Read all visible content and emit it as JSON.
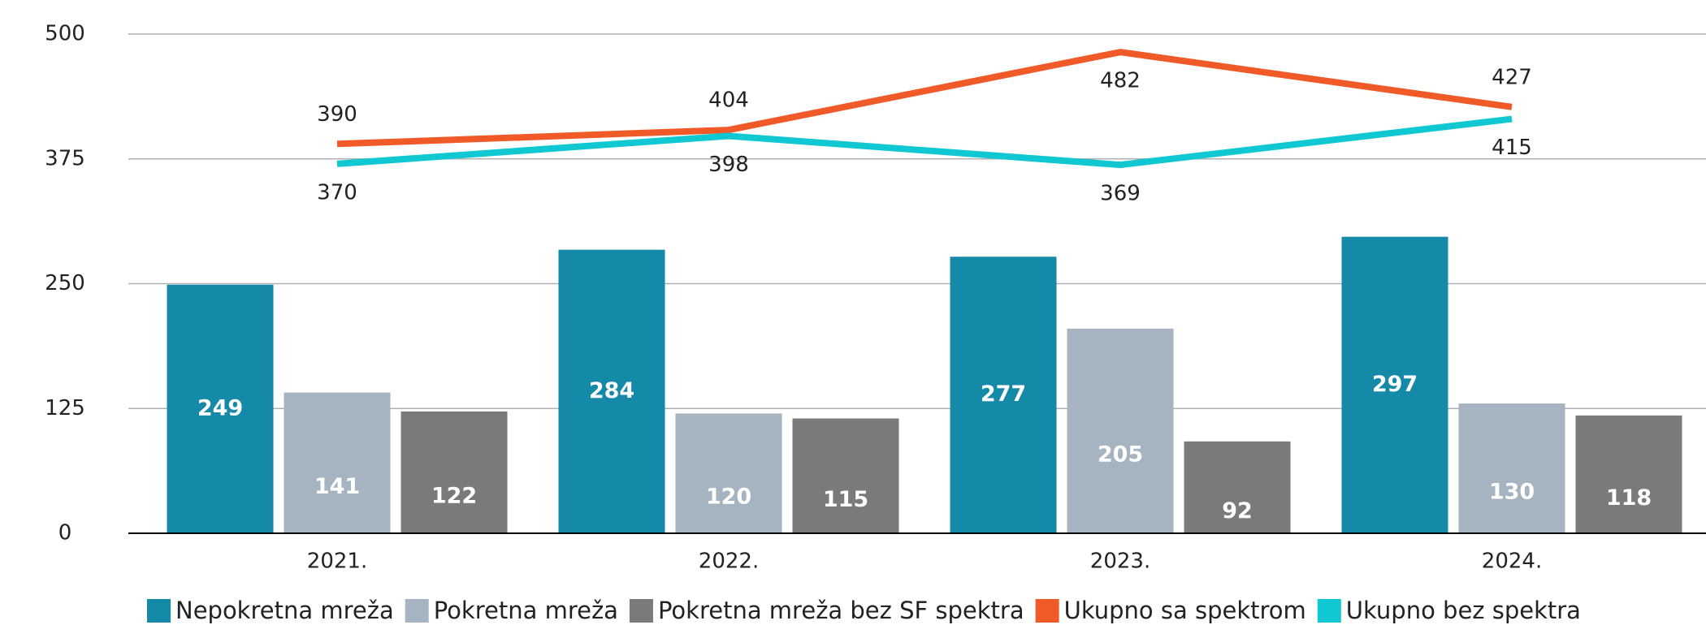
{
  "chart_data": {
    "type": "bar_line",
    "categories": [
      "2021.",
      "2022.",
      "2023.",
      "2024."
    ],
    "series": [
      {
        "name": "Nepokretna mreža",
        "type": "bar",
        "color": "#1589a8",
        "values": [
          249,
          284,
          277,
          297
        ]
      },
      {
        "name": "Pokretna mreža",
        "type": "bar",
        "color": "#a5b4c0",
        "values": [
          141,
          120,
          205,
          130
        ]
      },
      {
        "name": "Pokretna mreža bez SF spektra",
        "type": "bar",
        "color": "#7a7a7c",
        "values": [
          122,
          115,
          92,
          118
        ]
      },
      {
        "name": "Ukupno sa spektrom",
        "type": "line",
        "color": "#f05a28",
        "values": [
          390,
          404,
          482,
          427
        ]
      },
      {
        "name": "Ukupno bez spektra",
        "type": "line",
        "color": "#10c8d2",
        "values": [
          370,
          398,
          369,
          415
        ]
      }
    ],
    "ylim": [
      0,
      500
    ],
    "yticks": [
      0,
      125,
      250,
      375,
      500
    ],
    "grid": true,
    "legend": "bottom"
  }
}
